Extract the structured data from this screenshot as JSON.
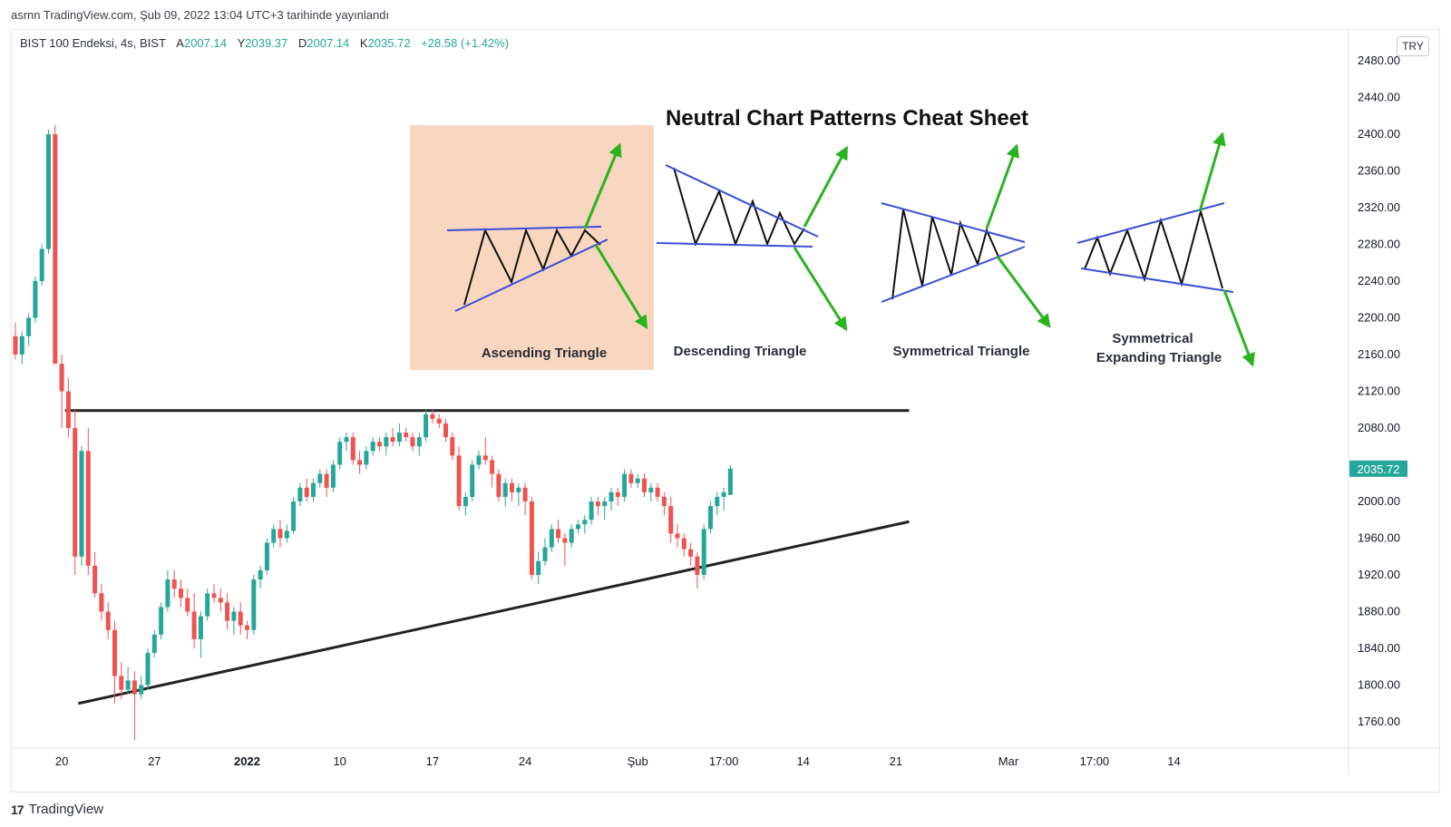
{
  "publish_line": "asrnn TradingView.com, Şub 09, 2022 13:04 UTC+3 tarihinde yayınlandı",
  "legend": {
    "symbol": "BIST 100 Endeksi, 4s, BIST",
    "open_label": "A",
    "open": "2007.14",
    "high_label": "Y",
    "high": "2039.37",
    "low_label": "D",
    "low": "2007.14",
    "close_label": "K",
    "close": "2035.72",
    "change": "+28.58 (+1.42%)"
  },
  "currency": "TRY",
  "footer": {
    "logo": "17",
    "brand": "TradingView"
  },
  "colors": {
    "up": "#26a69a",
    "down": "#ef5350",
    "price_tag": "#26a69a",
    "trendline": "#222222",
    "pattern_line": "#3a4fd6",
    "breakout_arrow": "#2ab31f",
    "highlight_box": "#f8d6bf"
  },
  "cheat_sheet": {
    "title": "Neutral Chart Patterns Cheat Sheet",
    "patterns": [
      {
        "name": "Ascending Triangle",
        "highlighted": true
      },
      {
        "name": "Descending Triangle",
        "highlighted": false
      },
      {
        "name": "Symmetrical Triangle",
        "highlighted": false
      },
      {
        "name": "Symmetrical",
        "name_line2": "Expanding Triangle",
        "highlighted": false
      }
    ]
  },
  "chart_data": {
    "type": "candlestick",
    "title": "BIST 100 Endeksi, 4s, BIST",
    "ylim": [
      1730,
      2500
    ],
    "y_ticks": [
      1760,
      1800,
      1840,
      1880,
      1920,
      1960,
      2000,
      2040,
      2080,
      2120,
      2160,
      2200,
      2240,
      2280,
      2320,
      2360,
      2400,
      2440,
      2480
    ],
    "y_tick_labels": [
      "1760.00",
      "1800.00",
      "1840.00",
      "1880.00",
      "1920.00",
      "1960.00",
      "2000.00",
      "2080.00",
      "2120.00",
      "2160.00",
      "2200.00",
      "2240.00",
      "2280.00",
      "2320.00",
      "2360.00",
      "2400.00",
      "2440.00",
      "2480.00"
    ],
    "last_price_label": "2035.72",
    "last_price": 2035.72,
    "x_ticks": [
      {
        "label": "20",
        "bar": 7,
        "bold": false
      },
      {
        "label": "27",
        "bar": 21,
        "bold": false
      },
      {
        "label": "2022",
        "bar": 35,
        "bold": true
      },
      {
        "label": "10",
        "bar": 49,
        "bold": false
      },
      {
        "label": "17",
        "bar": 63,
        "bold": false
      },
      {
        "label": "24",
        "bar": 77,
        "bold": false
      },
      {
        "label": "Şub",
        "bar": 94,
        "bold": false
      },
      {
        "label": "17:00",
        "bar": 107,
        "bold": false
      },
      {
        "label": "14",
        "bar": 119,
        "bold": false
      },
      {
        "label": "21",
        "bar": 133,
        "bold": false
      },
      {
        "label": "Mar",
        "bar": 150,
        "bold": false
      },
      {
        "label": "17:00",
        "bar": 163,
        "bold": false
      },
      {
        "label": "14",
        "bar": 175,
        "bold": false
      }
    ],
    "candles": [
      [
        2180,
        2195,
        2155,
        2160
      ],
      [
        2160,
        2185,
        2150,
        2180
      ],
      [
        2180,
        2205,
        2170,
        2200
      ],
      [
        2200,
        2245,
        2195,
        2240
      ],
      [
        2240,
        2280,
        2235,
        2275
      ],
      [
        2275,
        2405,
        2270,
        2400
      ],
      [
        2400,
        2410,
        2150,
        2150
      ],
      [
        2150,
        2160,
        2080,
        2120
      ],
      [
        2120,
        2135,
        2070,
        2080
      ],
      [
        2080,
        2100,
        1920,
        1940
      ],
      [
        1940,
        2060,
        1930,
        2055
      ],
      [
        2055,
        2080,
        1920,
        1930
      ],
      [
        1930,
        1945,
        1895,
        1900
      ],
      [
        1900,
        1910,
        1870,
        1880
      ],
      [
        1880,
        1890,
        1850,
        1860
      ],
      [
        1860,
        1870,
        1780,
        1810
      ],
      [
        1810,
        1825,
        1785,
        1795
      ],
      [
        1795,
        1820,
        1790,
        1805
      ],
      [
        1805,
        1815,
        1740,
        1790
      ],
      [
        1790,
        1810,
        1785,
        1800
      ],
      [
        1800,
        1840,
        1795,
        1835
      ],
      [
        1835,
        1860,
        1830,
        1855
      ],
      [
        1855,
        1890,
        1850,
        1885
      ],
      [
        1885,
        1925,
        1880,
        1915
      ],
      [
        1915,
        1925,
        1895,
        1905
      ],
      [
        1905,
        1915,
        1885,
        1895
      ],
      [
        1895,
        1905,
        1875,
        1880
      ],
      [
        1880,
        1900,
        1840,
        1850
      ],
      [
        1850,
        1880,
        1830,
        1875
      ],
      [
        1875,
        1905,
        1870,
        1900
      ],
      [
        1900,
        1910,
        1890,
        1895
      ],
      [
        1895,
        1905,
        1880,
        1890
      ],
      [
        1890,
        1900,
        1860,
        1870
      ],
      [
        1870,
        1885,
        1855,
        1880
      ],
      [
        1880,
        1890,
        1855,
        1865
      ],
      [
        1865,
        1870,
        1850,
        1860
      ],
      [
        1860,
        1920,
        1855,
        1915
      ],
      [
        1915,
        1930,
        1905,
        1925
      ],
      [
        1925,
        1960,
        1920,
        1955
      ],
      [
        1955,
        1975,
        1950,
        1970
      ],
      [
        1970,
        1980,
        1950,
        1960
      ],
      [
        1960,
        1975,
        1955,
        1968
      ],
      [
        1968,
        2005,
        1965,
        2000
      ],
      [
        2000,
        2020,
        1995,
        2015
      ],
      [
        2015,
        2025,
        2000,
        2005
      ],
      [
        2005,
        2025,
        2000,
        2020
      ],
      [
        2020,
        2035,
        2015,
        2030
      ],
      [
        2030,
        2035,
        2005,
        2015
      ],
      [
        2015,
        2045,
        2010,
        2040
      ],
      [
        2040,
        2070,
        2035,
        2065
      ],
      [
        2065,
        2075,
        2055,
        2070
      ],
      [
        2070,
        2075,
        2040,
        2045
      ],
      [
        2045,
        2055,
        2030,
        2040
      ],
      [
        2040,
        2060,
        2035,
        2055
      ],
      [
        2055,
        2070,
        2050,
        2065
      ],
      [
        2065,
        2070,
        2055,
        2060
      ],
      [
        2060,
        2075,
        2050,
        2070
      ],
      [
        2070,
        2080,
        2060,
        2065
      ],
      [
        2065,
        2085,
        2060,
        2075
      ],
      [
        2075,
        2080,
        2065,
        2070
      ],
      [
        2070,
        2075,
        2055,
        2060
      ],
      [
        2060,
        2075,
        2050,
        2070
      ],
      [
        2070,
        2100,
        2065,
        2095
      ],
      [
        2095,
        2100,
        2085,
        2090
      ],
      [
        2090,
        2095,
        2080,
        2085
      ],
      [
        2085,
        2090,
        2065,
        2070
      ],
      [
        2070,
        2075,
        2045,
        2050
      ],
      [
        2050,
        2060,
        1990,
        1995
      ],
      [
        1995,
        2010,
        1985,
        2005
      ],
      [
        2005,
        2045,
        2000,
        2040
      ],
      [
        2040,
        2055,
        2035,
        2050
      ],
      [
        2050,
        2070,
        2040,
        2045
      ],
      [
        2045,
        2050,
        2015,
        2030
      ],
      [
        2030,
        2035,
        2000,
        2005
      ],
      [
        2005,
        2025,
        1995,
        2020
      ],
      [
        2020,
        2025,
        2000,
        2010
      ],
      [
        2010,
        2020,
        1995,
        2015
      ],
      [
        2015,
        2020,
        1985,
        2000
      ],
      [
        2000,
        2005,
        1915,
        1920
      ],
      [
        1920,
        1945,
        1910,
        1935
      ],
      [
        1935,
        1960,
        1930,
        1950
      ],
      [
        1950,
        1975,
        1945,
        1970
      ],
      [
        1970,
        1980,
        1955,
        1960
      ],
      [
        1960,
        1965,
        1930,
        1955
      ],
      [
        1955,
        1975,
        1950,
        1970
      ],
      [
        1970,
        1980,
        1965,
        1975
      ],
      [
        1975,
        1985,
        1965,
        1980
      ],
      [
        1980,
        2005,
        1975,
        2000
      ],
      [
        2000,
        2005,
        1985,
        1995
      ],
      [
        1995,
        2005,
        1980,
        2000
      ],
      [
        2000,
        2015,
        1990,
        2010
      ],
      [
        2010,
        2015,
        1995,
        2005
      ],
      [
        2005,
        2035,
        2000,
        2030
      ],
      [
        2030,
        2035,
        2015,
        2020
      ],
      [
        2020,
        2030,
        2015,
        2025
      ],
      [
        2025,
        2030,
        2005,
        2010
      ],
      [
        2010,
        2020,
        2000,
        2015
      ],
      [
        2015,
        2020,
        2000,
        2005
      ],
      [
        2005,
        2010,
        1985,
        1995
      ],
      [
        1995,
        2005,
        1955,
        1965
      ],
      [
        1965,
        1975,
        1950,
        1960
      ],
      [
        1960,
        1965,
        1940,
        1948
      ],
      [
        1948,
        1955,
        1930,
        1940
      ],
      [
        1940,
        1945,
        1905,
        1920
      ],
      [
        1920,
        1975,
        1915,
        1970
      ],
      [
        1970,
        2000,
        1965,
        1995
      ],
      [
        1995,
        2010,
        1985,
        2005
      ],
      [
        2005,
        2015,
        1990,
        2010
      ],
      [
        2007.14,
        2039.37,
        2007.14,
        2035.72
      ]
    ],
    "trendlines": [
      {
        "name": "resistance",
        "from": [
          7.5,
          2099
        ],
        "to": [
          135,
          2099
        ]
      },
      {
        "name": "support",
        "from": [
          9.5,
          1780
        ],
        "to": [
          135,
          1978
        ]
      }
    ]
  }
}
